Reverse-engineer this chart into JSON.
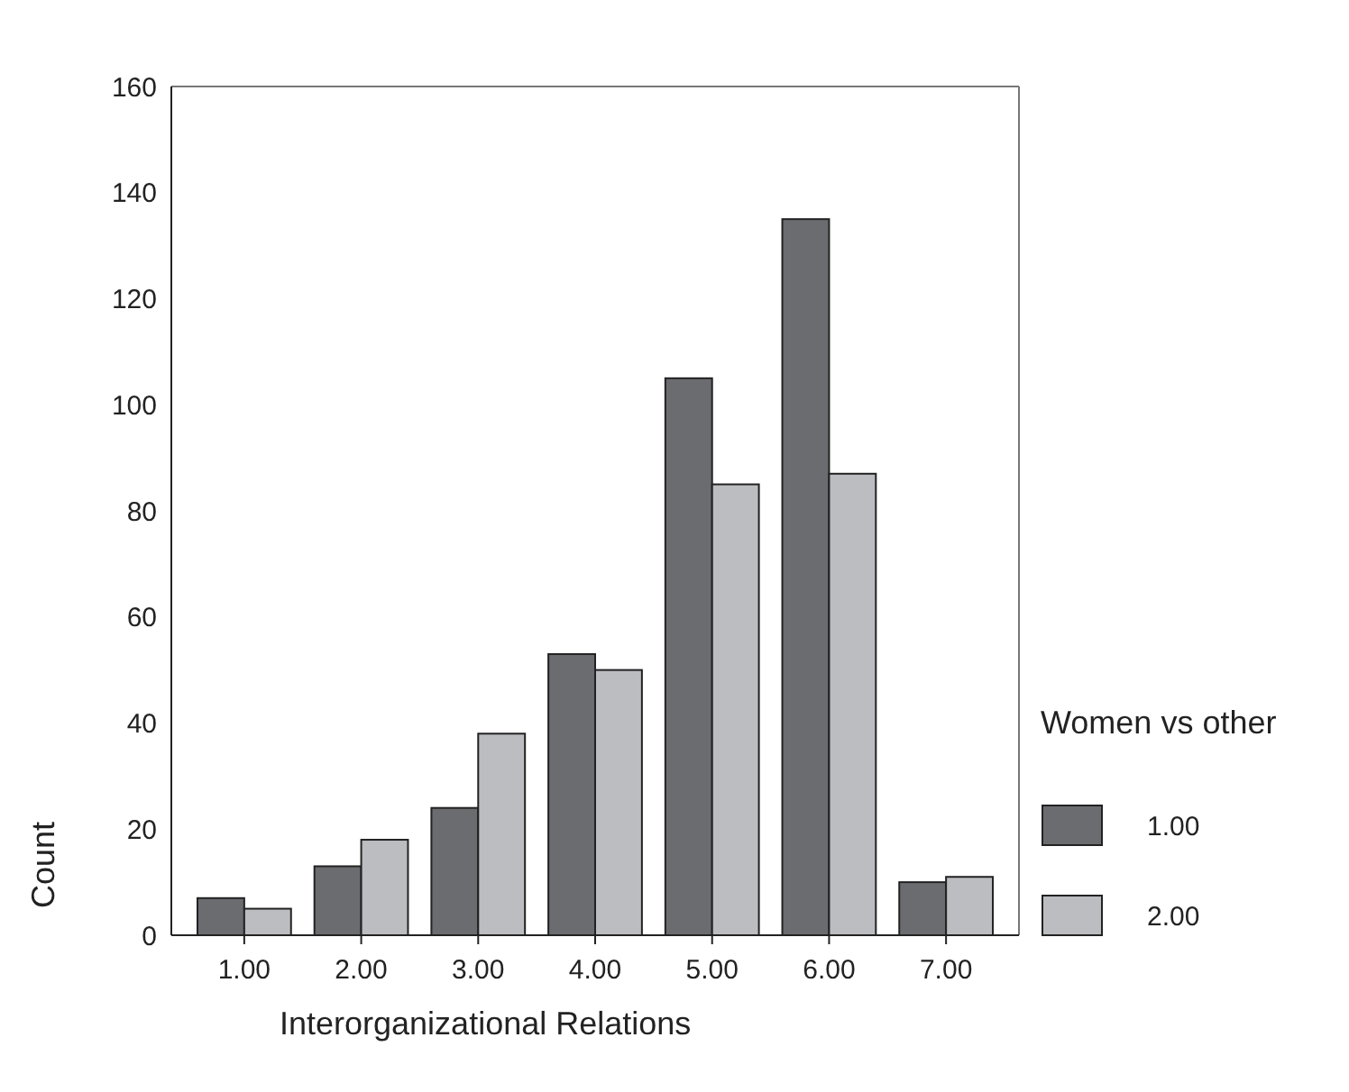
{
  "chart_data": {
    "type": "bar",
    "xlabel": "Interorganizational Relations",
    "ylabel": "Count",
    "legend_title": "Women vs other",
    "categories": [
      "1.00",
      "2.00",
      "3.00",
      "4.00",
      "5.00",
      "6.00",
      "7.00"
    ],
    "series": [
      {
        "name": "1.00",
        "color": "#6b6c70",
        "values": [
          7,
          13,
          24,
          53,
          105,
          135,
          10
        ]
      },
      {
        "name": "2.00",
        "color": "#bcbdc1",
        "values": [
          5,
          18,
          38,
          50,
          85,
          87,
          11
        ]
      }
    ],
    "ylim": [
      0,
      160
    ],
    "yticks": [
      0,
      20,
      40,
      60,
      80,
      100,
      120,
      140,
      160
    ],
    "legend": "right",
    "grid": false
  }
}
